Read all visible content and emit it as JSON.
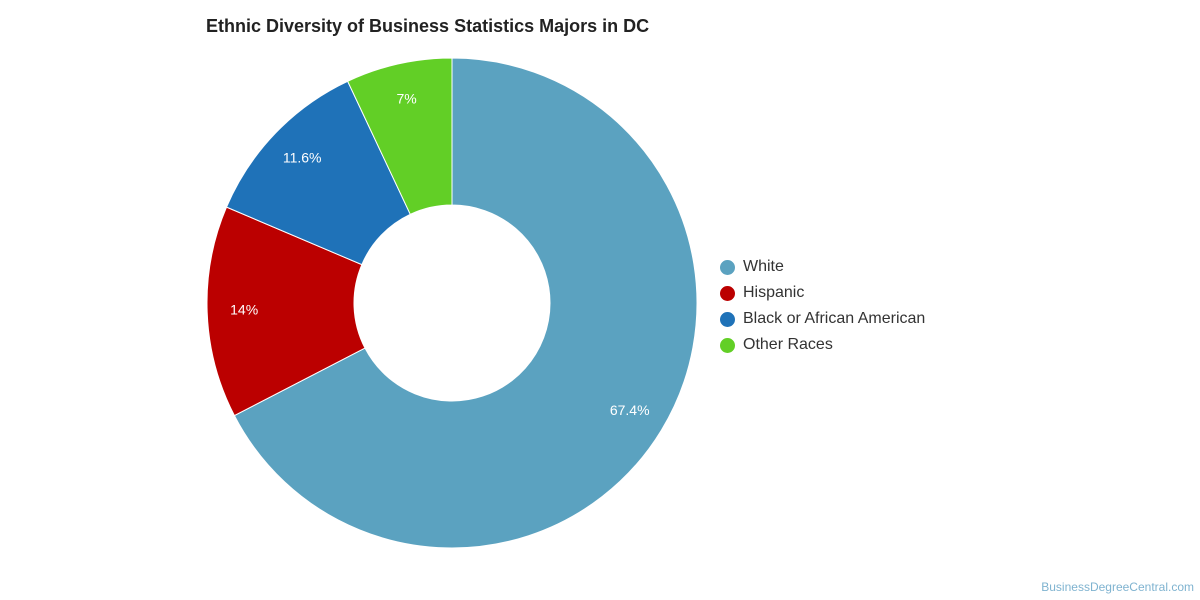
{
  "chart_data": {
    "type": "pie",
    "variant": "donut",
    "title": "Ethnic Diversity of Business Statistics Majors in DC",
    "categories": [
      "White",
      "Hispanic",
      "Black or African American",
      "Other Races"
    ],
    "values": [
      67.4,
      14,
      11.6,
      7
    ],
    "value_labels": [
      "67.4%",
      "14%",
      "11.6%",
      "7%"
    ],
    "colors": [
      "#5ba2c0",
      "#bb0000",
      "#1f72b8",
      "#62cf26"
    ],
    "legend_position": "right"
  },
  "credit": "BusinessDegreeCentral.com"
}
